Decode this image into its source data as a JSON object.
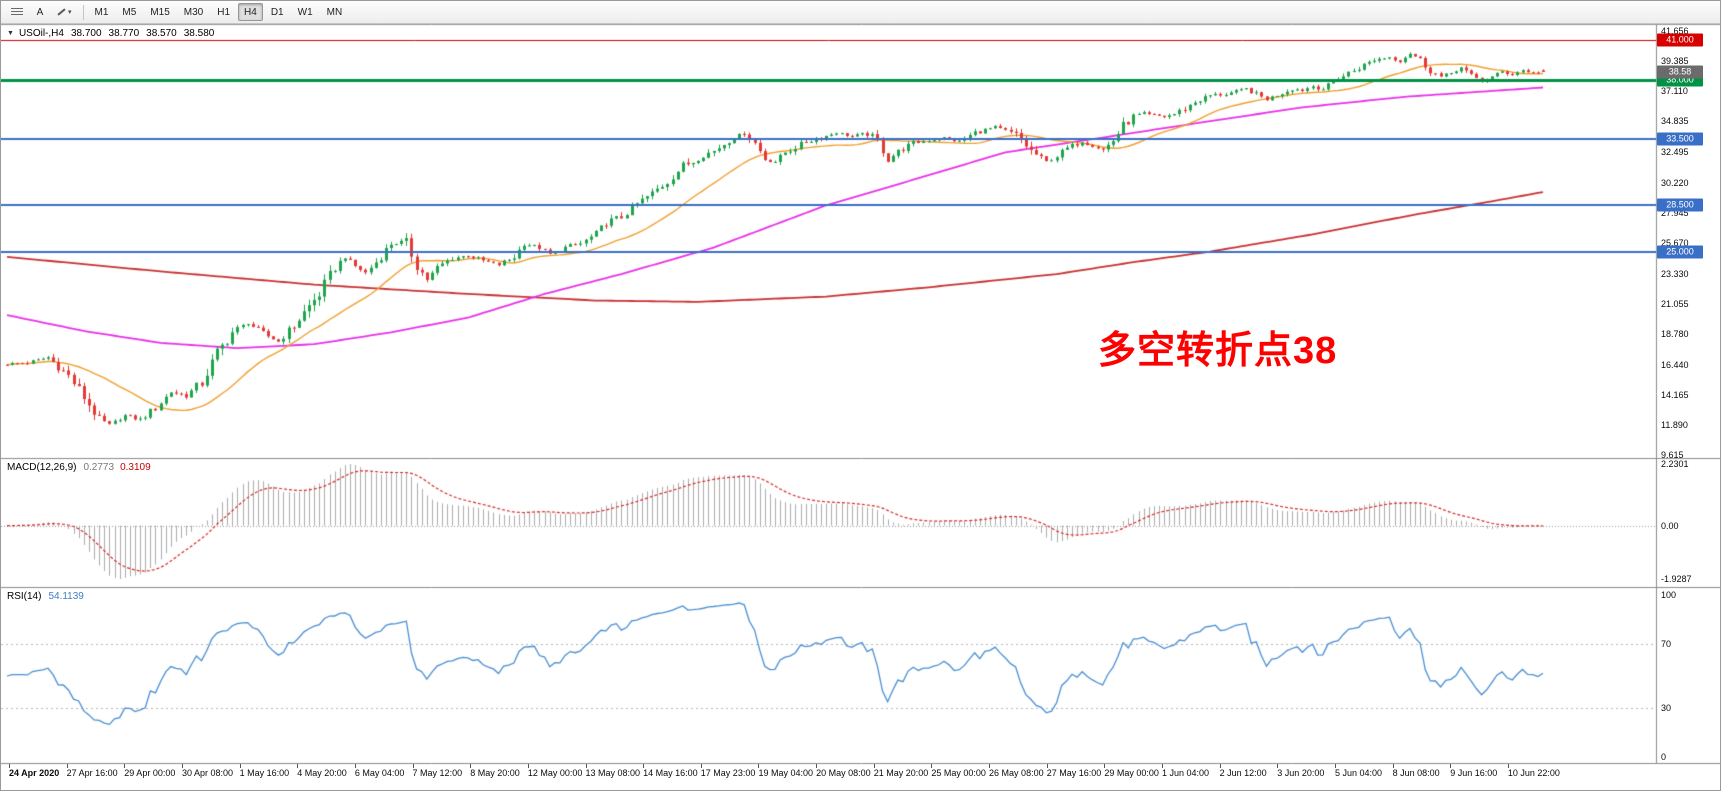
{
  "toolbar": {
    "timeframes": [
      "M1",
      "M5",
      "M15",
      "M30",
      "H1",
      "H4",
      "D1",
      "W1",
      "MN"
    ],
    "active_timeframe": "H4",
    "text_tool_label": "A"
  },
  "time_axis": {
    "labels": [
      "24 Apr 2020",
      "27 Apr 16:00",
      "29 Apr 00:00",
      "30 Apr 08:00",
      "1 May 16:00",
      "4 May 20:00",
      "6 May 04:00",
      "7 May 12:00",
      "8 May 20:00",
      "12 May 00:00",
      "13 May 08:00",
      "14 May 16:00",
      "17 May 23:00",
      "19 May 04:00",
      "20 May 08:00",
      "21 May 20:00",
      "25 May 00:00",
      "26 May 08:00",
      "27 May 16:00",
      "29 May 00:00",
      "1 Jun 04:00",
      "2 Jun 12:00",
      "3 Jun 20:00",
      "5 Jun 04:00",
      "8 Jun 08:00",
      "9 Jun 16:00",
      "10 Jun 22:00"
    ]
  },
  "chart_data": [
    {
      "type": "candlestick",
      "title": "USOil-,H4",
      "timeframe": "H4",
      "bar_count": 301,
      "ohlc_readout": {
        "open": "38.700",
        "high": "38.770",
        "low": "38.570",
        "close": "38.580"
      },
      "current_price_label": "38.58",
      "up_color": "#1FA44C",
      "down_color": "#E53935",
      "price_axis": {
        "min": 9.4,
        "max": 42.2,
        "tick_labels": [
          "41.656",
          "39.385",
          "37.110",
          "34.835",
          "32.495",
          "30.220",
          "27.945",
          "25.670",
          "23.330",
          "21.055",
          "18.780",
          "16.440",
          "14.165",
          "11.890",
          "9.615"
        ]
      },
      "hlines": [
        {
          "price": 41.0,
          "label": "41.000",
          "color": "#D60000",
          "thickness": 1
        },
        {
          "price": 38.0,
          "label": "38.000",
          "color": "#009245",
          "thickness": 3
        },
        {
          "price": 33.5,
          "label": "33.500",
          "color": "#3A6FC8",
          "thickness": 2
        },
        {
          "price": 28.5,
          "label": "28.500",
          "color": "#3A6FC8",
          "thickness": 2
        },
        {
          "price": 25.0,
          "label": "25.000",
          "color": "#3A6FC8",
          "thickness": 2
        }
      ],
      "close_path": [
        [
          0,
          16.5
        ],
        [
          4,
          16.6
        ],
        [
          8,
          17.0
        ],
        [
          12,
          15.6
        ],
        [
          15,
          14.0
        ],
        [
          18,
          12.3
        ],
        [
          20,
          11.9
        ],
        [
          23,
          12.6
        ],
        [
          26,
          12.3
        ],
        [
          29,
          13.2
        ],
        [
          32,
          14.4
        ],
        [
          35,
          14.1
        ],
        [
          38,
          15.1
        ],
        [
          41,
          17.3
        ],
        [
          44,
          18.9
        ],
        [
          47,
          19.6
        ],
        [
          50,
          18.8
        ],
        [
          53,
          18.2
        ],
        [
          56,
          19.4
        ],
        [
          58,
          20.4
        ],
        [
          61,
          21.8
        ],
        [
          64,
          23.8
        ],
        [
          66,
          24.6
        ],
        [
          68,
          23.9
        ],
        [
          70,
          23.4
        ],
        [
          72,
          24.2
        ],
        [
          75,
          25.6
        ],
        [
          78,
          25.7
        ],
        [
          80,
          23.9
        ],
        [
          82,
          22.9
        ],
        [
          84,
          23.8
        ],
        [
          87,
          24.5
        ],
        [
          90,
          24.7
        ],
        [
          93,
          24.3
        ],
        [
          96,
          24.0
        ],
        [
          99,
          24.6
        ],
        [
          101,
          25.6
        ],
        [
          104,
          25.3
        ],
        [
          106,
          24.8
        ],
        [
          109,
          25.3
        ],
        [
          112,
          25.6
        ],
        [
          115,
          26.3
        ],
        [
          117,
          27.2
        ],
        [
          120,
          27.6
        ],
        [
          123,
          28.6
        ],
        [
          126,
          29.4
        ],
        [
          129,
          30.3
        ],
        [
          132,
          31.5
        ],
        [
          134,
          31.8
        ],
        [
          136,
          32.3
        ],
        [
          138,
          32.6
        ],
        [
          141,
          33.4
        ],
        [
          144,
          34.0
        ],
        [
          146,
          33.2
        ],
        [
          148,
          32.0
        ],
        [
          150,
          31.8
        ],
        [
          152,
          32.5
        ],
        [
          156,
          33.3
        ],
        [
          159,
          33.6
        ],
        [
          162,
          34.0
        ],
        [
          165,
          33.7
        ],
        [
          168,
          33.9
        ],
        [
          170,
          33.3
        ],
        [
          172,
          31.9
        ],
        [
          174,
          32.6
        ],
        [
          177,
          33.2
        ],
        [
          180,
          33.4
        ],
        [
          183,
          33.6
        ],
        [
          186,
          33.3
        ],
        [
          189,
          34.0
        ],
        [
          193,
          34.4
        ],
        [
          195,
          34.1
        ],
        [
          197,
          33.8
        ],
        [
          200,
          32.6
        ],
        [
          203,
          31.8
        ],
        [
          205,
          32.2
        ],
        [
          207,
          32.8
        ],
        [
          210,
          33.3
        ],
        [
          212,
          33.0
        ],
        [
          214,
          32.7
        ],
        [
          216,
          33.4
        ],
        [
          218,
          34.5
        ],
        [
          220,
          35.2
        ],
        [
          222,
          35.4
        ],
        [
          224,
          35.3
        ],
        [
          226,
          35.2
        ],
        [
          228,
          35.4
        ],
        [
          230,
          35.8
        ],
        [
          232,
          36.3
        ],
        [
          235,
          36.8
        ],
        [
          238,
          36.9
        ],
        [
          240,
          37.1
        ],
        [
          242,
          37.3
        ],
        [
          244,
          36.9
        ],
        [
          246,
          36.5
        ],
        [
          249,
          37.0
        ],
        [
          251,
          37.3
        ],
        [
          253,
          37.2
        ],
        [
          255,
          37.5
        ],
        [
          257,
          37.3
        ],
        [
          259,
          37.8
        ],
        [
          262,
          38.5
        ],
        [
          265,
          39.1
        ],
        [
          267,
          39.5
        ],
        [
          270,
          39.7
        ],
        [
          272,
          39.4
        ],
        [
          274,
          40.0
        ],
        [
          276,
          39.5
        ],
        [
          278,
          38.7
        ],
        [
          280,
          38.2
        ],
        [
          282,
          38.5
        ],
        [
          284,
          38.9
        ],
        [
          286,
          38.3
        ],
        [
          288,
          37.9
        ],
        [
          290,
          38.2
        ],
        [
          292,
          38.6
        ],
        [
          294,
          38.4
        ],
        [
          296,
          38.7
        ],
        [
          298,
          38.5
        ],
        [
          300,
          38.58
        ]
      ],
      "ma_lines": [
        {
          "name": "fast-ma",
          "color": "#F0A030",
          "period": 20,
          "source": "sma_of_closes"
        },
        {
          "name": "mid-ma",
          "color": "#E832E8",
          "path": [
            [
              0,
              20.2
            ],
            [
              15,
              19.0
            ],
            [
              30,
              18.1
            ],
            [
              45,
              17.7
            ],
            [
              60,
              18.0
            ],
            [
              75,
              18.9
            ],
            [
              90,
              20.0
            ],
            [
              105,
              21.8
            ],
            [
              120,
              23.3
            ],
            [
              138,
              25.3
            ],
            [
              160,
              28.5
            ],
            [
              175,
              30.2
            ],
            [
              195,
              32.5
            ],
            [
              212,
              33.5
            ],
            [
              234,
              34.8
            ],
            [
              253,
              35.9
            ],
            [
              273,
              36.7
            ],
            [
              300,
              37.4
            ]
          ]
        },
        {
          "name": "slow-ma",
          "color": "#C83232",
          "path": [
            [
              0,
              24.6
            ],
            [
              30,
              23.5
            ],
            [
              60,
              22.5
            ],
            [
              90,
              21.8
            ],
            [
              115,
              21.3
            ],
            [
              135,
              21.2
            ],
            [
              160,
              21.6
            ],
            [
              180,
              22.3
            ],
            [
              205,
              23.3
            ],
            [
              220,
              24.2
            ],
            [
              235,
              25.0
            ],
            [
              255,
              26.3
            ],
            [
              275,
              27.8
            ],
            [
              290,
              28.8
            ],
            [
              300,
              29.5
            ]
          ]
        }
      ],
      "annotation": {
        "text": "多空转折点38",
        "color": "#FF0000",
        "x_frac": 0.663,
        "price_top": 19.9
      }
    },
    {
      "type": "macd",
      "label": "MACD(12,26,9)",
      "params": [
        12,
        26,
        9
      ],
      "value_main": "0.2773",
      "value_signal": "0.3109",
      "axis_labels": [
        "2.2301",
        "0.00",
        "-1.9287"
      ],
      "histogram_color": "#ADADAD",
      "signal_color": "#D62B2B",
      "zero_line_color": "#9a9a9a"
    },
    {
      "type": "rsi",
      "label": "RSI(14)",
      "period": 14,
      "value": "54.1139",
      "axis_labels": [
        "100",
        "70",
        "30",
        "0"
      ],
      "levels": [
        30,
        70
      ],
      "line_color": "#4A8FD2",
      "level_line_color": "#b8b8b8"
    }
  ]
}
